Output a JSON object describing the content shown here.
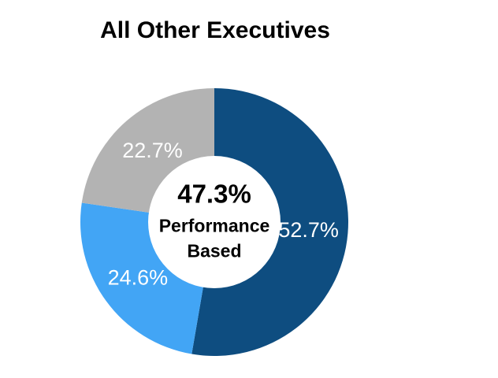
{
  "chart_data": {
    "type": "pie",
    "subtype": "donut",
    "title": "All Other Executives",
    "direction": "clockwise",
    "start_angle": "12 o'clock",
    "slices": [
      {
        "label": "52.7%",
        "value": 52.7,
        "color": "#0E4D80"
      },
      {
        "label": "24.6%",
        "value": 24.6,
        "color": "#42A5F5"
      },
      {
        "label": "22.7%",
        "value": 22.7,
        "color": "#B3B3B3"
      }
    ],
    "slice_label_color": "#FFFFFF",
    "center_label": {
      "value": "47.3%",
      "line1": "Performance",
      "line2": "Based",
      "color": "#000000"
    },
    "hole_color": "#FFFFFF",
    "background": "#FFFFFF",
    "legend": "none"
  }
}
